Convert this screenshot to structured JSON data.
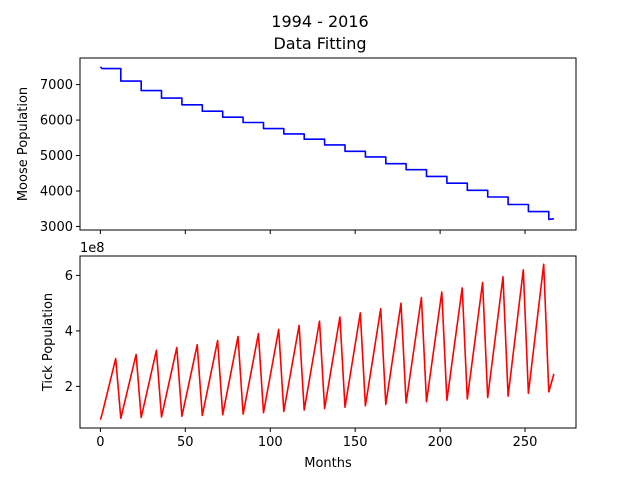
{
  "figure": {
    "title_line1": "1994 - 2016",
    "title_line2": "Data Fitting"
  },
  "chart_data": [
    {
      "type": "line",
      "name": "moose",
      "ylabel": "Moose Population",
      "xlabel": "",
      "xlim": [
        -12,
        280
      ],
      "ylim": [
        2900,
        7750
      ],
      "xticks": [
        0,
        50,
        100,
        150,
        200,
        250
      ],
      "xtick_labels_visible": false,
      "yticks": [
        3000,
        4000,
        5000,
        6000,
        7000
      ],
      "ytick_labels": [
        "3000",
        "4000",
        "5000",
        "6000",
        "7000"
      ],
      "color": "#0000ff",
      "x": [
        0,
        1,
        1,
        12,
        12,
        24,
        24,
        36,
        36,
        48,
        48,
        60,
        60,
        72,
        72,
        84,
        84,
        96,
        96,
        108,
        108,
        120,
        120,
        132,
        132,
        144,
        144,
        156,
        156,
        168,
        168,
        180,
        180,
        192,
        192,
        204,
        204,
        216,
        216,
        228,
        228,
        240,
        240,
        252,
        252,
        264,
        264,
        267
      ],
      "y": [
        7500,
        7450,
        7450,
        7450,
        7100,
        7100,
        6830,
        6830,
        6620,
        6620,
        6430,
        6430,
        6250,
        6250,
        6080,
        6080,
        5930,
        5930,
        5760,
        5760,
        5610,
        5610,
        5460,
        5460,
        5300,
        5300,
        5120,
        5120,
        4960,
        4960,
        4770,
        4770,
        4600,
        4600,
        4410,
        4410,
        4220,
        4220,
        4020,
        4020,
        3830,
        3830,
        3620,
        3620,
        3420,
        3420,
        3200,
        3220
      ]
    },
    {
      "type": "line",
      "name": "ticks",
      "ylabel": "Tick Population",
      "xlabel": "Months",
      "offset_label": "1e8",
      "xlim": [
        -12,
        280
      ],
      "ylim": [
        0.5,
        6.7
      ],
      "xticks": [
        0,
        50,
        100,
        150,
        200,
        250
      ],
      "xtick_labels": [
        "0",
        "50",
        "100",
        "150",
        "200",
        "250"
      ],
      "yticks": [
        2,
        4,
        6
      ],
      "ytick_labels": [
        "2",
        "4",
        "6"
      ],
      "color": "#ff0000",
      "x": [
        0,
        1,
        9,
        12,
        21,
        24,
        33,
        36,
        45,
        48,
        57,
        60,
        69,
        72,
        81,
        84,
        93,
        96,
        105,
        108,
        117,
        120,
        129,
        132,
        141,
        144,
        153,
        156,
        165,
        168,
        177,
        180,
        189,
        192,
        201,
        204,
        213,
        216,
        225,
        228,
        237,
        240,
        249,
        252,
        261,
        264,
        267
      ],
      "y": [
        0.8,
        1.0,
        3.0,
        0.85,
        3.15,
        0.88,
        3.3,
        0.9,
        3.4,
        0.92,
        3.5,
        0.95,
        3.65,
        0.98,
        3.8,
        1.0,
        3.9,
        1.05,
        4.05,
        1.1,
        4.2,
        1.15,
        4.35,
        1.2,
        4.5,
        1.25,
        4.65,
        1.3,
        4.8,
        1.35,
        5.0,
        1.4,
        5.2,
        1.45,
        5.4,
        1.5,
        5.55,
        1.55,
        5.75,
        1.6,
        5.95,
        1.65,
        6.2,
        1.75,
        6.4,
        1.8,
        2.45
      ]
    }
  ]
}
